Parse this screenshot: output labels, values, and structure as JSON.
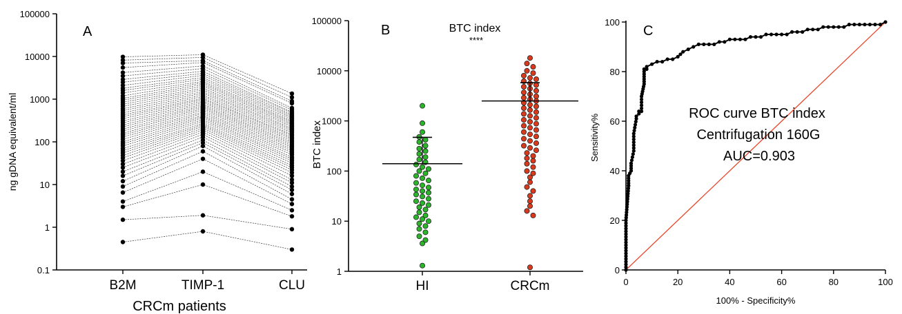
{
  "chart_data": [
    {
      "panel": "A",
      "type": "scatter",
      "categories": [
        "B2M",
        "TIMP-1",
        "CLU"
      ],
      "xlabel": "CRCm patients",
      "ylabel": "ng gDNA equivalent/ml",
      "yscale": "log",
      "ylim": [
        0.1,
        100000
      ],
      "yticks": [
        "0.1",
        "1",
        "10",
        "100",
        "1000",
        "10000",
        "100000"
      ],
      "description_series": [
        {
          "name": "",
          "points": [
            [
              9800,
              11000,
              1350
            ],
            [
              8200,
              9500,
              1100
            ],
            [
              7000,
              8000,
              900
            ],
            [
              5500,
              7200,
              800
            ],
            [
              4200,
              6000,
              620
            ],
            [
              3500,
              5200,
              560
            ],
            [
              2900,
              4500,
              500
            ],
            [
              2500,
              4000,
              470
            ],
            [
              2100,
              3600,
              430
            ],
            [
              1800,
              3200,
              400
            ],
            [
              1600,
              2900,
              370
            ],
            [
              1400,
              2600,
              340
            ],
            [
              1200,
              2400,
              310
            ],
            [
              1050,
              2200,
              290
            ],
            [
              950,
              2000,
              270
            ],
            [
              850,
              1800,
              250
            ],
            [
              760,
              1650,
              230
            ],
            [
              680,
              1500,
              210
            ],
            [
              600,
              1380,
              195
            ],
            [
              540,
              1250,
              180
            ],
            [
              480,
              1150,
              165
            ],
            [
              430,
              1050,
              150
            ],
            [
              390,
              980,
              140
            ],
            [
              350,
              900,
              128
            ],
            [
              310,
              830,
              118
            ],
            [
              280,
              760,
              108
            ],
            [
              250,
              700,
              98
            ],
            [
              225,
              650,
              90
            ],
            [
              200,
              600,
              82
            ],
            [
              180,
              550,
              75
            ],
            [
              160,
              500,
              68
            ],
            [
              145,
              460,
              62
            ],
            [
              130,
              420,
              56
            ],
            [
              115,
              390,
              50
            ],
            [
              100,
              360,
              44
            ],
            [
              90,
              330,
              40
            ],
            [
              80,
              300,
              36
            ],
            [
              70,
              270,
              32
            ],
            [
              62,
              250,
              28
            ],
            [
              55,
              230,
              25
            ],
            [
              48,
              210,
              22
            ],
            [
              42,
              190,
              19
            ],
            [
              36,
              170,
              16
            ],
            [
              30,
              150,
              13
            ],
            [
              25,
              130,
              11
            ],
            [
              20,
              110,
              9
            ],
            [
              16,
              95,
              7.5
            ],
            [
              12,
              80,
              6
            ],
            [
              9,
              60,
              4.5
            ],
            [
              6.5,
              40,
              3.5
            ],
            [
              4,
              20,
              2.5
            ],
            [
              3,
              10,
              1.8
            ],
            [
              1.5,
              1.9,
              0.9
            ],
            [
              0.45,
              0.8,
              0.3
            ]
          ]
        }
      ]
    },
    {
      "panel": "B",
      "type": "scatter",
      "title": "BTC index",
      "significance": "****",
      "categories": [
        "HI",
        "CRCm"
      ],
      "ylabel": "BTC index",
      "yscale": "log",
      "ylim": [
        1,
        100000
      ],
      "yticks": [
        "1",
        "10",
        "100",
        "1000",
        "10000",
        "100000"
      ],
      "series": [
        {
          "name": "HI",
          "color": "#2bb52b",
          "mean": 140,
          "upper_sd": 470,
          "values": [
            2000,
            900,
            600,
            480,
            420,
            380,
            320,
            280,
            250,
            220,
            190,
            170,
            150,
            135,
            120,
            110,
            100,
            90,
            80,
            72,
            65,
            58,
            52,
            47,
            43,
            40,
            37,
            34,
            31,
            28,
            25,
            23,
            21,
            19,
            17,
            15,
            13,
            12,
            11,
            10,
            9,
            8,
            7,
            6,
            5,
            4.2,
            3.6,
            1.3
          ]
        },
        {
          "name": "CRCm",
          "color": "#d93a1e",
          "mean": 2500,
          "upper_sd": 5800,
          "values": [
            18000,
            14000,
            12000,
            10000,
            9000,
            8000,
            7200,
            6800,
            6200,
            5600,
            5200,
            4800,
            4400,
            4000,
            3700,
            3400,
            3100,
            2900,
            2700,
            2500,
            2300,
            2100,
            1950,
            1800,
            1650,
            1500,
            1380,
            1260,
            1150,
            1050,
            960,
            880,
            800,
            730,
            660,
            600,
            540,
            490,
            440,
            400,
            360,
            320,
            290,
            260,
            230,
            200,
            180,
            160,
            140,
            120,
            100,
            90,
            75,
            60,
            48,
            40,
            32,
            25,
            20,
            16,
            13,
            1.2
          ]
        }
      ]
    },
    {
      "panel": "C",
      "type": "line",
      "xlabel": "100% - Specificity%",
      "ylabel": "Sensitivity%",
      "xlim": [
        0,
        100
      ],
      "ylim": [
        0,
        100
      ],
      "xticks": [
        "0",
        "20",
        "40",
        "60",
        "80",
        "100"
      ],
      "yticks": [
        "0",
        "20",
        "40",
        "60",
        "80",
        "100"
      ],
      "annotation_lines": [
        "ROC curve BTC index",
        "Centrifugation 160G",
        "AUC=0.903"
      ],
      "series": [
        {
          "name": "ROC",
          "color": "#000000",
          "x": [
            0,
            0,
            0,
            1,
            1,
            1,
            2,
            2,
            2,
            3,
            3,
            4,
            4,
            5,
            5,
            6,
            6,
            7,
            7,
            7,
            8,
            8,
            10,
            12,
            14,
            16,
            18,
            20,
            22,
            24,
            26,
            28,
            30,
            32,
            34,
            36,
            38,
            40,
            42,
            44,
            46,
            48,
            50,
            52,
            54,
            56,
            58,
            60,
            62,
            64,
            66,
            68,
            70,
            72,
            74,
            76,
            78,
            80,
            82,
            84,
            86,
            88,
            90,
            92,
            94,
            96,
            98,
            100
          ],
          "y": [
            0,
            10,
            20,
            34,
            34,
            38,
            40,
            43,
            43,
            48,
            55,
            61,
            62,
            63,
            64,
            64,
            70,
            75,
            78,
            81,
            81,
            82,
            83,
            84,
            84,
            85,
            85,
            86,
            88,
            89,
            90,
            91,
            91,
            91,
            91,
            92,
            92,
            93,
            93,
            93,
            93,
            94,
            94,
            94,
            95,
            95,
            95,
            95,
            95,
            96,
            96,
            96,
            97,
            97,
            97,
            98,
            98,
            98,
            98,
            98,
            99,
            99,
            99,
            99,
            99,
            99,
            99,
            100
          ]
        },
        {
          "name": "",
          "color": "#e8472b",
          "x": [
            0,
            100
          ],
          "y": [
            0,
            100
          ]
        }
      ]
    }
  ],
  "panel_labels": {
    "a": "A",
    "b": "B",
    "c": "C"
  }
}
